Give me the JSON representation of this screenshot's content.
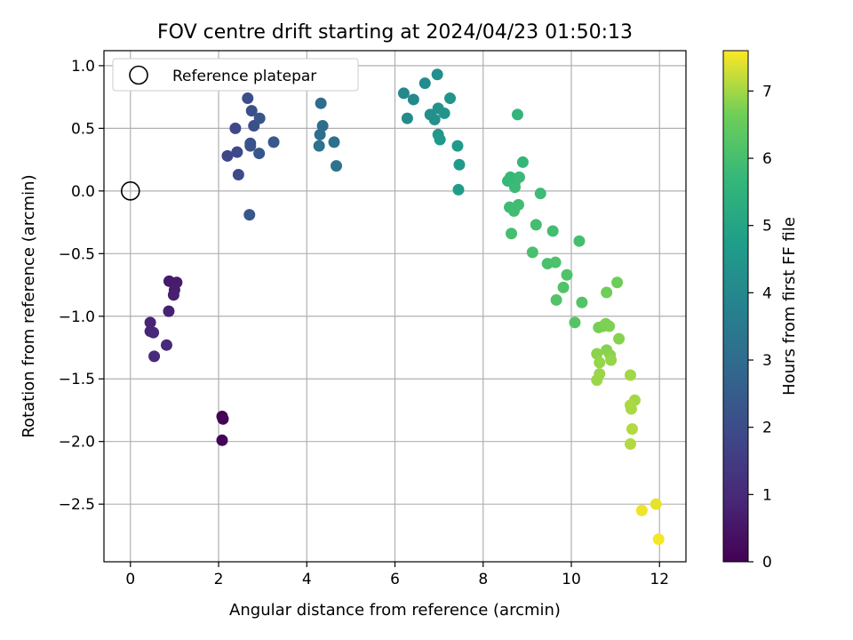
{
  "chart_data": {
    "type": "scatter",
    "title": "FOV centre drift starting at 2024/04/23 01:50:13",
    "xlabel": "Angular distance from reference (arcmin)",
    "ylabel": "Rotation from reference (arcmin)",
    "xlim": [
      -0.6,
      12.6
    ],
    "ylim": [
      -2.96,
      1.12
    ],
    "xticks": [
      0,
      2,
      4,
      6,
      8,
      10,
      12
    ],
    "xtick_labels": [
      "0",
      "2",
      "4",
      "6",
      "8",
      "10",
      "12"
    ],
    "yticks": [
      1.0,
      0.5,
      0.0,
      -0.5,
      -1.0,
      -1.5,
      -2.0,
      -2.5
    ],
    "ytick_labels": [
      "1.0",
      "0.5",
      "0.0",
      "−0.5",
      "−1.0",
      "−1.5",
      "−2.0",
      "−2.5"
    ],
    "grid": true,
    "legend": {
      "position": "top-left",
      "entries": [
        "Reference platepar"
      ]
    },
    "reference_point": {
      "x": 0.0,
      "y": 0.0
    },
    "colorbar": {
      "label": "Hours from first FF file",
      "range": [
        0,
        7.6
      ],
      "ticks": [
        0,
        1,
        2,
        3,
        4,
        5,
        6,
        7
      ],
      "tick_labels": [
        "0",
        "1",
        "2",
        "3",
        "4",
        "5",
        "6",
        "7"
      ],
      "colormap": "viridis"
    },
    "points": [
      {
        "x": 2.08,
        "y": -1.8,
        "h": 0.0
      },
      {
        "x": 2.1,
        "y": -1.82,
        "h": 0.05
      },
      {
        "x": 2.08,
        "y": -1.99,
        "h": 0.1
      },
      {
        "x": 0.88,
        "y": -0.72,
        "h": 0.6
      },
      {
        "x": 1.05,
        "y": -0.73,
        "h": 0.65
      },
      {
        "x": 1.0,
        "y": -0.79,
        "h": 0.7
      },
      {
        "x": 0.98,
        "y": -0.83,
        "h": 0.75
      },
      {
        "x": 0.87,
        "y": -0.96,
        "h": 0.8
      },
      {
        "x": 0.45,
        "y": -1.05,
        "h": 0.85
      },
      {
        "x": 0.45,
        "y": -1.12,
        "h": 0.9
      },
      {
        "x": 0.52,
        "y": -1.13,
        "h": 0.95
      },
      {
        "x": 0.82,
        "y": -1.23,
        "h": 1.0
      },
      {
        "x": 0.54,
        "y": -1.32,
        "h": 1.05
      },
      {
        "x": 2.2,
        "y": 0.28,
        "h": 1.8
      },
      {
        "x": 2.38,
        "y": 0.5,
        "h": 1.85
      },
      {
        "x": 2.42,
        "y": 0.31,
        "h": 1.9
      },
      {
        "x": 2.45,
        "y": 0.13,
        "h": 1.95
      },
      {
        "x": 2.66,
        "y": 0.74,
        "h": 2.05
      },
      {
        "x": 2.75,
        "y": 0.64,
        "h": 2.1
      },
      {
        "x": 2.8,
        "y": 0.52,
        "h": 2.1
      },
      {
        "x": 2.72,
        "y": 0.38,
        "h": 2.15
      },
      {
        "x": 2.72,
        "y": 0.36,
        "h": 2.2
      },
      {
        "x": 2.93,
        "y": 0.58,
        "h": 2.25
      },
      {
        "x": 2.92,
        "y": 0.3,
        "h": 2.3
      },
      {
        "x": 2.7,
        "y": -0.19,
        "h": 2.35
      },
      {
        "x": 3.25,
        "y": 0.39,
        "h": 2.4
      },
      {
        "x": 4.32,
        "y": 0.7,
        "h": 3.0
      },
      {
        "x": 4.36,
        "y": 0.52,
        "h": 3.05
      },
      {
        "x": 4.3,
        "y": 0.45,
        "h": 3.1
      },
      {
        "x": 4.62,
        "y": 0.39,
        "h": 3.15
      },
      {
        "x": 4.28,
        "y": 0.36,
        "h": 3.2
      },
      {
        "x": 4.67,
        "y": 0.2,
        "h": 3.3
      },
      {
        "x": 6.2,
        "y": 0.78,
        "h": 4.0
      },
      {
        "x": 6.42,
        "y": 0.73,
        "h": 4.05
      },
      {
        "x": 6.28,
        "y": 0.58,
        "h": 4.1
      },
      {
        "x": 6.68,
        "y": 0.86,
        "h": 4.15
      },
      {
        "x": 6.96,
        "y": 0.93,
        "h": 4.2
      },
      {
        "x": 6.8,
        "y": 0.61,
        "h": 4.25
      },
      {
        "x": 6.9,
        "y": 0.57,
        "h": 4.3
      },
      {
        "x": 6.98,
        "y": 0.66,
        "h": 4.35
      },
      {
        "x": 7.12,
        "y": 0.62,
        "h": 4.4
      },
      {
        "x": 7.25,
        "y": 0.74,
        "h": 4.45
      },
      {
        "x": 6.98,
        "y": 0.45,
        "h": 4.5
      },
      {
        "x": 7.02,
        "y": 0.41,
        "h": 4.55
      },
      {
        "x": 7.42,
        "y": 0.36,
        "h": 4.6
      },
      {
        "x": 7.46,
        "y": 0.21,
        "h": 4.65
      },
      {
        "x": 7.44,
        "y": 0.01,
        "h": 4.7
      },
      {
        "x": 8.78,
        "y": 0.61,
        "h": 5.6
      },
      {
        "x": 8.9,
        "y": 0.23,
        "h": 5.65
      },
      {
        "x": 8.56,
        "y": 0.08,
        "h": 5.7
      },
      {
        "x": 8.62,
        "y": 0.11,
        "h": 5.75
      },
      {
        "x": 8.72,
        "y": 0.07,
        "h": 5.75
      },
      {
        "x": 8.72,
        "y": 0.03,
        "h": 5.8
      },
      {
        "x": 8.82,
        "y": 0.11,
        "h": 5.8
      },
      {
        "x": 9.3,
        "y": -0.02,
        "h": 5.85
      },
      {
        "x": 8.6,
        "y": -0.13,
        "h": 5.85
      },
      {
        "x": 8.7,
        "y": -0.16,
        "h": 5.9
      },
      {
        "x": 8.8,
        "y": -0.11,
        "h": 5.9
      },
      {
        "x": 9.2,
        "y": -0.27,
        "h": 5.95
      },
      {
        "x": 9.58,
        "y": -0.32,
        "h": 5.95
      },
      {
        "x": 8.64,
        "y": -0.34,
        "h": 6.0
      },
      {
        "x": 10.18,
        "y": -0.4,
        "h": 6.0
      },
      {
        "x": 9.12,
        "y": -0.49,
        "h": 6.05
      },
      {
        "x": 9.46,
        "y": -0.58,
        "h": 6.05
      },
      {
        "x": 9.64,
        "y": -0.57,
        "h": 6.1
      },
      {
        "x": 9.9,
        "y": -0.67,
        "h": 6.15
      },
      {
        "x": 9.82,
        "y": -0.77,
        "h": 6.15
      },
      {
        "x": 9.66,
        "y": -0.87,
        "h": 6.2
      },
      {
        "x": 10.24,
        "y": -0.89,
        "h": 6.2
      },
      {
        "x": 10.08,
        "y": -1.05,
        "h": 6.25
      },
      {
        "x": 11.04,
        "y": -0.73,
        "h": 6.6
      },
      {
        "x": 10.8,
        "y": -0.81,
        "h": 6.65
      },
      {
        "x": 10.62,
        "y": -1.09,
        "h": 6.7
      },
      {
        "x": 10.72,
        "y": -1.08,
        "h": 6.7
      },
      {
        "x": 10.78,
        "y": -1.06,
        "h": 6.75
      },
      {
        "x": 10.86,
        "y": -1.08,
        "h": 6.75
      },
      {
        "x": 11.08,
        "y": -1.18,
        "h": 6.8
      },
      {
        "x": 10.8,
        "y": -1.27,
        "h": 6.8
      },
      {
        "x": 10.58,
        "y": -1.3,
        "h": 6.85
      },
      {
        "x": 10.88,
        "y": -1.31,
        "h": 6.85
      },
      {
        "x": 10.9,
        "y": -1.35,
        "h": 6.9
      },
      {
        "x": 10.64,
        "y": -1.37,
        "h": 6.9
      },
      {
        "x": 10.64,
        "y": -1.46,
        "h": 6.95
      },
      {
        "x": 10.58,
        "y": -1.51,
        "h": 6.95
      },
      {
        "x": 11.34,
        "y": -1.47,
        "h": 7.0
      },
      {
        "x": 11.44,
        "y": -1.67,
        "h": 7.0
      },
      {
        "x": 11.34,
        "y": -1.71,
        "h": 7.05
      },
      {
        "x": 11.36,
        "y": -1.74,
        "h": 7.05
      },
      {
        "x": 11.38,
        "y": -1.9,
        "h": 7.1
      },
      {
        "x": 11.34,
        "y": -2.02,
        "h": 7.1
      },
      {
        "x": 11.92,
        "y": -2.5,
        "h": 7.45
      },
      {
        "x": 11.6,
        "y": -2.55,
        "h": 7.5
      },
      {
        "x": 11.98,
        "y": -2.78,
        "h": 7.55
      }
    ]
  }
}
